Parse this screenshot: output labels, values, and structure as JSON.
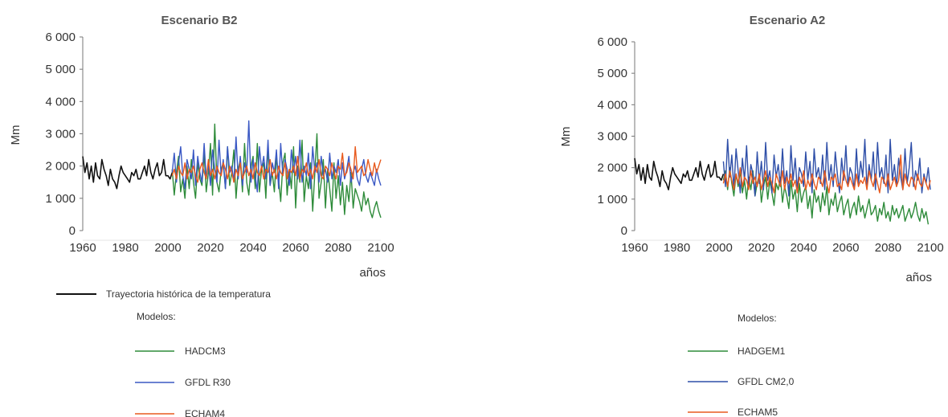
{
  "chart_data": [
    {
      "type": "line",
      "title": "Escenario B2",
      "ylabel": "Mm",
      "xlabel": "años",
      "xlim": [
        1960,
        2100
      ],
      "ylim": [
        0,
        6000
      ],
      "x_ticks": [
        1960,
        1980,
        2000,
        2020,
        2040,
        2060,
        2080,
        2100
      ],
      "y_ticks": [
        0,
        1000,
        2000,
        3000,
        4000,
        5000,
        6000
      ],
      "y_tick_labels": [
        "0",
        "1 000",
        "2 000",
        "3 000",
        "4 000",
        "5 000",
        "6 000"
      ],
      "legend_heading": "Modelos:",
      "series": [
        {
          "name": "Trayectoria histórica de la temperatura",
          "color": "#111111",
          "start": 1960,
          "values": [
            2300,
            1800,
            2100,
            1600,
            2000,
            1500,
            2100,
            1700,
            1600,
            2200,
            1900,
            1700,
            1400,
            1900,
            1600,
            1500,
            1300,
            1700,
            2000,
            1800,
            1700,
            1600,
            1500,
            1800,
            1700,
            1900,
            1600,
            1600,
            1800,
            2000,
            1700,
            2200,
            1800,
            1600,
            1900,
            2100,
            1700,
            1800,
            2200,
            1700,
            1700,
            1600,
            1800
          ]
        },
        {
          "name": "HADCM3",
          "color": "#2e8b3a",
          "start": 2002,
          "values": [
            1900,
            1100,
            1800,
            2300,
            1200,
            1600,
            1000,
            2000,
            1300,
            2200,
            1500,
            1000,
            2100,
            1600,
            1400,
            2400,
            1200,
            1800,
            2700,
            1100,
            3300,
            1500,
            1200,
            1900,
            2100,
            1300,
            2600,
            1400,
            1800,
            2500,
            1000,
            1900,
            2200,
            1200,
            2700,
            1500,
            1100,
            2000,
            2300,
            1300,
            2700,
            1200,
            1900,
            2100,
            1000,
            2600,
            1400,
            1800,
            1200,
            2300,
            1600,
            900,
            2100,
            2400,
            1100,
            1900,
            1300,
            2600,
            700,
            2000,
            1500,
            2800,
            900,
            1700,
            1300,
            2100,
            600,
            1800,
            3000,
            1000,
            1500,
            2200,
            700,
            1900,
            1300,
            600,
            2100,
            1000,
            1700,
            800,
            1500,
            500,
            1400,
            900,
            1800,
            700,
            1300,
            1100,
            900,
            600,
            1200,
            800,
            1000,
            600,
            400,
            700,
            900,
            600,
            400
          ]
        },
        {
          "name": "GFDL R30",
          "color": "#3a58c4",
          "start": 2002,
          "values": [
            1800,
            2400,
            1500,
            2100,
            2600,
            1700,
            1300,
            2200,
            1900,
            1600,
            2500,
            1400,
            2300,
            1800,
            1500,
            2700,
            1600,
            2100,
            1400,
            2500,
            1900,
            1500,
            2800,
            1700,
            2200,
            1300,
            2600,
            1800,
            2000,
            1500,
            2900,
            1600,
            2300,
            1400,
            2100,
            1800,
            3400,
            1500,
            2200,
            1700,
            1200,
            2600,
            1900,
            2300,
            1600,
            2800,
            1400,
            2100,
            1800,
            2500,
            1300,
            2700,
            1700,
            2200,
            1900,
            1400,
            2500,
            1800,
            2300,
            1600,
            2800,
            1500,
            2000,
            1700,
            2400,
            1300,
            2600,
            1800,
            2100,
            1500,
            2300,
            1700,
            1900,
            1500,
            2400,
            1600,
            2000,
            1800,
            2200,
            1400,
            2100,
            1600,
            1900,
            2300,
            1500,
            1800,
            2000,
            1600,
            1400,
            1900,
            2200,
            1700,
            1500,
            1800,
            1600,
            1400,
            1900,
            1600,
            1400
          ]
        },
        {
          "name": "ECHAM4",
          "color": "#e85a1e",
          "start": 2002,
          "values": [
            1700,
            1900,
            1600,
            2000,
            1800,
            1700,
            2100,
            1600,
            1900,
            1800,
            2000,
            1700,
            1500,
            1900,
            2100,
            1800,
            1600,
            2200,
            1700,
            1900,
            1600,
            2000,
            1800,
            1700,
            2100,
            1900,
            1600,
            2000,
            1800,
            1500,
            1900,
            1700,
            2100,
            1600,
            1800,
            2000,
            1700,
            1900,
            1600,
            2100,
            1800,
            1700,
            2000,
            1600,
            1900,
            1800,
            2200,
            1700,
            1900,
            1600,
            2000,
            1800,
            1700,
            2100,
            1600,
            1900,
            1800,
            2000,
            1700,
            2300,
            1600,
            1900,
            1800,
            2100,
            1700,
            1900,
            1600,
            2000,
            1800,
            2200,
            1700,
            1600,
            2000,
            1900,
            1700,
            2100,
            1800,
            1600,
            2000,
            1900,
            2400,
            1700,
            1800,
            2100,
            1900,
            1600,
            2600,
            1800,
            1900,
            2000,
            1700,
            1800,
            2200,
            1900,
            1700,
            2100,
            1800,
            2000,
            2200
          ]
        }
      ]
    },
    {
      "type": "line",
      "title": "Escenario A2",
      "ylabel": "Mm",
      "xlabel": "años",
      "xlim": [
        1960,
        2100
      ],
      "ylim": [
        0,
        6000
      ],
      "x_ticks": [
        1960,
        1980,
        2000,
        2020,
        2040,
        2060,
        2080,
        2100
      ],
      "y_ticks": [
        0,
        1000,
        2000,
        3000,
        4000,
        5000,
        6000
      ],
      "y_tick_labels": [
        "0",
        "1 000",
        "2 000",
        "3 000",
        "4 000",
        "5 000",
        "6 000"
      ],
      "legend_heading": "Modelos:",
      "series": [
        {
          "name": "",
          "color": "#111111",
          "start": 1960,
          "values": [
            2300,
            1800,
            2100,
            1600,
            2000,
            1500,
            2100,
            1700,
            1600,
            2200,
            1900,
            1700,
            1400,
            1900,
            1600,
            1500,
            1300,
            1700,
            2000,
            1800,
            1700,
            1600,
            1500,
            1800,
            1700,
            1900,
            1600,
            1600,
            1800,
            2000,
            1700,
            2200,
            1800,
            1600,
            1900,
            2100,
            1700,
            1800,
            2200,
            1700,
            1700,
            1600,
            1800
          ]
        },
        {
          "name": "HADGEM1",
          "color": "#2e8b3a",
          "start": 2002,
          "values": [
            1600,
            1900,
            1300,
            2000,
            1500,
            1100,
            1800,
            1400,
            1900,
            1200,
            1600,
            1000,
            1700,
            1300,
            1900,
            1100,
            1500,
            1800,
            900,
            1400,
            1700,
            1000,
            1600,
            1200,
            800,
            1500,
            1300,
            1700,
            900,
            1400,
            1100,
            700,
            1600,
            1000,
            1300,
            600,
            1500,
            900,
            1200,
            1400,
            700,
            1100,
            400,
            1300,
            900,
            1100,
            600,
            1200,
            800,
            1400,
            500,
            1000,
            800,
            1200,
            600,
            900,
            1100,
            500,
            800,
            1000,
            400,
            700,
            900,
            500,
            1100,
            600,
            800,
            400,
            700,
            1000,
            500,
            600,
            800,
            300,
            700,
            500,
            900,
            400,
            600,
            300,
            800,
            500,
            700,
            400,
            600,
            800,
            300,
            500,
            700,
            400,
            600,
            900,
            500,
            300,
            700,
            400,
            600,
            200
          ]
        },
        {
          "name": "GFDL CM2,0",
          "color": "#2f4fa8",
          "start": 2002,
          "values": [
            2200,
            1400,
            2900,
            1700,
            2400,
            1300,
            2600,
            1900,
            1200,
            2300,
            1600,
            2700,
            1400,
            2100,
            1800,
            1100,
            2500,
            1500,
            2200,
            1300,
            2800,
            1600,
            1900,
            1200,
            2400,
            1700,
            2100,
            1400,
            2600,
            1500,
            1900,
            1100,
            2700,
            1600,
            2300,
            1300,
            2000,
            1800,
            1400,
            2500,
            1600,
            2200,
            1200,
            2600,
            1700,
            2000,
            1500,
            2400,
            1300,
            2800,
            1600,
            2100,
            1400,
            2500,
            1800,
            1200,
            2300,
            1600,
            2700,
            1400,
            2000,
            1800,
            1300,
            2600,
            1500,
            2200,
            1700,
            2900,
            1400,
            2100,
            1600,
            2500,
            1300,
            2800,
            1700,
            2000,
            1500,
            2400,
            1200,
            2900,
            1600,
            2100,
            1400,
            2300,
            1700,
            1300,
            2600,
            1500,
            2000,
            2800,
            1400,
            1900,
            1600,
            2300,
            1200,
            1800,
            1500,
            2000,
            1300
          ]
        },
        {
          "name": "ECHAM5",
          "color": "#e85a1e",
          "start": 2002,
          "values": [
            1500,
            1800,
            1400,
            1900,
            1600,
            1300,
            1800,
            1500,
            2000,
            1400,
            1700,
            1600,
            1300,
            1900,
            1500,
            1700,
            1400,
            1800,
            1300,
            1600,
            1900,
            1400,
            1700,
            1500,
            1200,
            1800,
            1600,
            1400,
            1900,
            1300,
            1700,
            1500,
            1800,
            1400,
            1600,
            1200,
            1700,
            1500,
            1900,
            1300,
            1600,
            1400,
            1800,
            1500,
            1300,
            1700,
            1600,
            1400,
            1900,
            1500,
            1200,
            1700,
            1600,
            1800,
            1400,
            1500,
            1300,
            1900,
            1600,
            1400,
            1700,
            1500,
            1300,
            1800,
            1400,
            1600,
            1500,
            1700,
            1300,
            1900,
            1600,
            1400,
            1800,
            1500,
            1200,
            1700,
            1600,
            1400,
            1800,
            1300,
            1500,
            1700,
            1400,
            1600,
            2400,
            1300,
            1800,
            1500,
            1400,
            1700,
            1600,
            1300,
            1800,
            1500,
            1400,
            1700,
            1500,
            1300,
            1600
          ]
        }
      ]
    }
  ]
}
